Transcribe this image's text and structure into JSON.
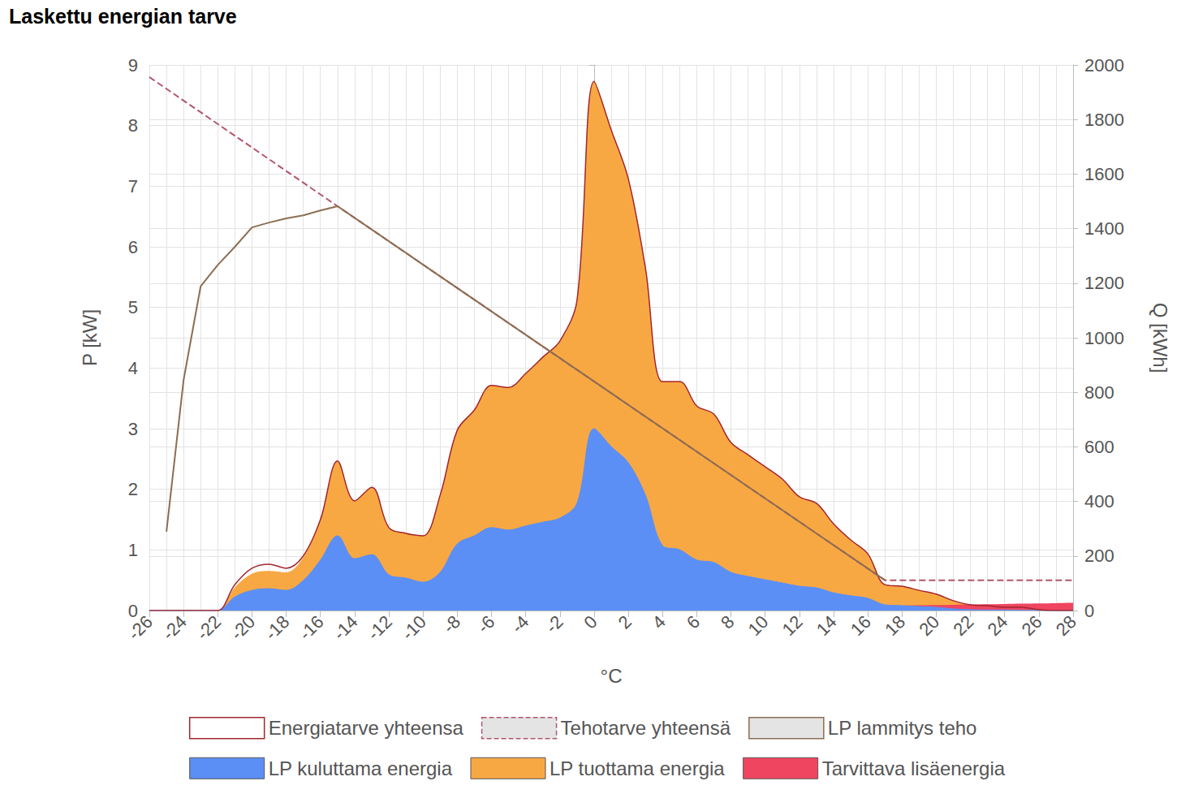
{
  "chart_data": {
    "type": "area",
    "title": "Laskettu energian tarve",
    "x_label": "°C",
    "y_label": "P [kW]",
    "y2_label": "Q [kWh]",
    "x": [
      -26,
      -25,
      -24,
      -23,
      -22,
      -21,
      -20,
      -19,
      -18,
      -17,
      -16,
      -15,
      -14,
      -13,
      -12,
      -11,
      -10,
      -9,
      -8,
      -7,
      -6,
      -5,
      -4,
      -3,
      -2,
      -1,
      0,
      1,
      2,
      3,
      4,
      5,
      6,
      7,
      8,
      9,
      10,
      11,
      12,
      13,
      14,
      15,
      16,
      17,
      18,
      19,
      20,
      21,
      22,
      23,
      24,
      25,
      26,
      27,
      28
    ],
    "xlim": [
      -26,
      28
    ],
    "xticks": [
      -26,
      -24,
      -22,
      -20,
      -18,
      -16,
      -14,
      -12,
      -10,
      -8,
      -6,
      -4,
      -2,
      0,
      2,
      4,
      6,
      8,
      10,
      12,
      14,
      16,
      18,
      20,
      22,
      24,
      26,
      28
    ],
    "ylim": [
      0,
      9
    ],
    "yticks": [
      0,
      1,
      2,
      3,
      4,
      5,
      6,
      7,
      8,
      9
    ],
    "y2lim": [
      0,
      2000
    ],
    "y2ticks": [
      0,
      200,
      400,
      600,
      800,
      1000,
      1200,
      1400,
      1600,
      1800,
      2000
    ],
    "grid": true,
    "legend": "bottom",
    "series": [
      {
        "name": "Energiatarve yhteensa",
        "type": "line",
        "axis": "y2",
        "color": "#a3262e",
        "line_style": "solid",
        "values": [
          0,
          0,
          0,
          0,
          0,
          95,
          155,
          170,
          155,
          200,
          333,
          548,
          402,
          452,
          304,
          283,
          274,
          423,
          661,
          735,
          825,
          818,
          869,
          929,
          988,
          1137,
          1940,
          1762,
          1583,
          1256,
          839,
          839,
          750,
          720,
          616,
          571,
          527,
          482,
          417,
          393,
          318,
          259,
          208,
          95,
          89,
          74,
          60,
          36,
          21,
          18,
          12,
          12,
          3,
          0,
          0
        ]
      },
      {
        "name": "Tehotarve yhteensä",
        "type": "line",
        "axis": "y",
        "color": "#b3566a",
        "line_style": "dashed",
        "x": [
          -26,
          -15,
          17,
          28
        ],
        "values": [
          8.8,
          6.67,
          0.5,
          0.5
        ]
      },
      {
        "name": "LP lammitys teho",
        "type": "line",
        "axis": "y",
        "color": "#8c6e52",
        "line_style": "solid",
        "x": [
          -25,
          -24,
          -23,
          -22,
          -21,
          -20,
          -19,
          -18,
          -17,
          -16,
          -15,
          17
        ],
        "values": [
          1.3,
          3.8,
          5.35,
          5.7,
          6.0,
          6.32,
          6.4,
          6.47,
          6.52,
          6.6,
          6.67,
          0.5
        ]
      },
      {
        "name": "LP kuluttama energia",
        "type": "area",
        "axis": "y2",
        "color": "#5b8ff5",
        "values": [
          0,
          0,
          0,
          0,
          0,
          50,
          74,
          80,
          74,
          110,
          185,
          274,
          190,
          205,
          131,
          119,
          104,
          140,
          244,
          274,
          304,
          295,
          310,
          324,
          339,
          393,
          667,
          601,
          542,
          423,
          238,
          223,
          185,
          176,
          140,
          125,
          113,
          101,
          89,
          83,
          65,
          54,
          45,
          21,
          18,
          15,
          12,
          6,
          3,
          2,
          2,
          1,
          1,
          0,
          0
        ]
      },
      {
        "name": "LP tuottama energia",
        "type": "stackedarea",
        "axis": "y2",
        "color": "#f8a843",
        "values": [
          0,
          0,
          0,
          0,
          0,
          85,
          135,
          145,
          140,
          195,
          333,
          548,
          402,
          452,
          304,
          283,
          274,
          423,
          661,
          735,
          825,
          818,
          869,
          929,
          988,
          1137,
          1940,
          1762,
          1583,
          1256,
          839,
          839,
          750,
          720,
          616,
          571,
          527,
          482,
          417,
          393,
          318,
          259,
          208,
          95,
          89,
          74,
          60,
          36,
          21,
          18,
          12,
          12,
          3,
          0,
          0
        ]
      },
      {
        "name": "Tarvittava lisäenergia",
        "type": "stackedarea",
        "axis": "y2",
        "color": "#ef4560",
        "values": [
          0,
          0,
          0,
          0,
          0,
          10,
          20,
          25,
          15,
          5,
          0,
          0,
          0,
          0,
          0,
          0,
          0,
          0,
          0,
          0,
          0,
          0,
          0,
          0,
          0,
          0,
          0,
          0,
          0,
          0,
          0,
          0,
          0,
          0,
          0,
          0,
          0,
          0,
          0,
          0,
          0,
          0,
          0,
          0,
          0,
          0,
          0,
          0,
          0,
          0,
          0,
          0,
          0,
          0,
          0
        ]
      }
    ]
  }
}
